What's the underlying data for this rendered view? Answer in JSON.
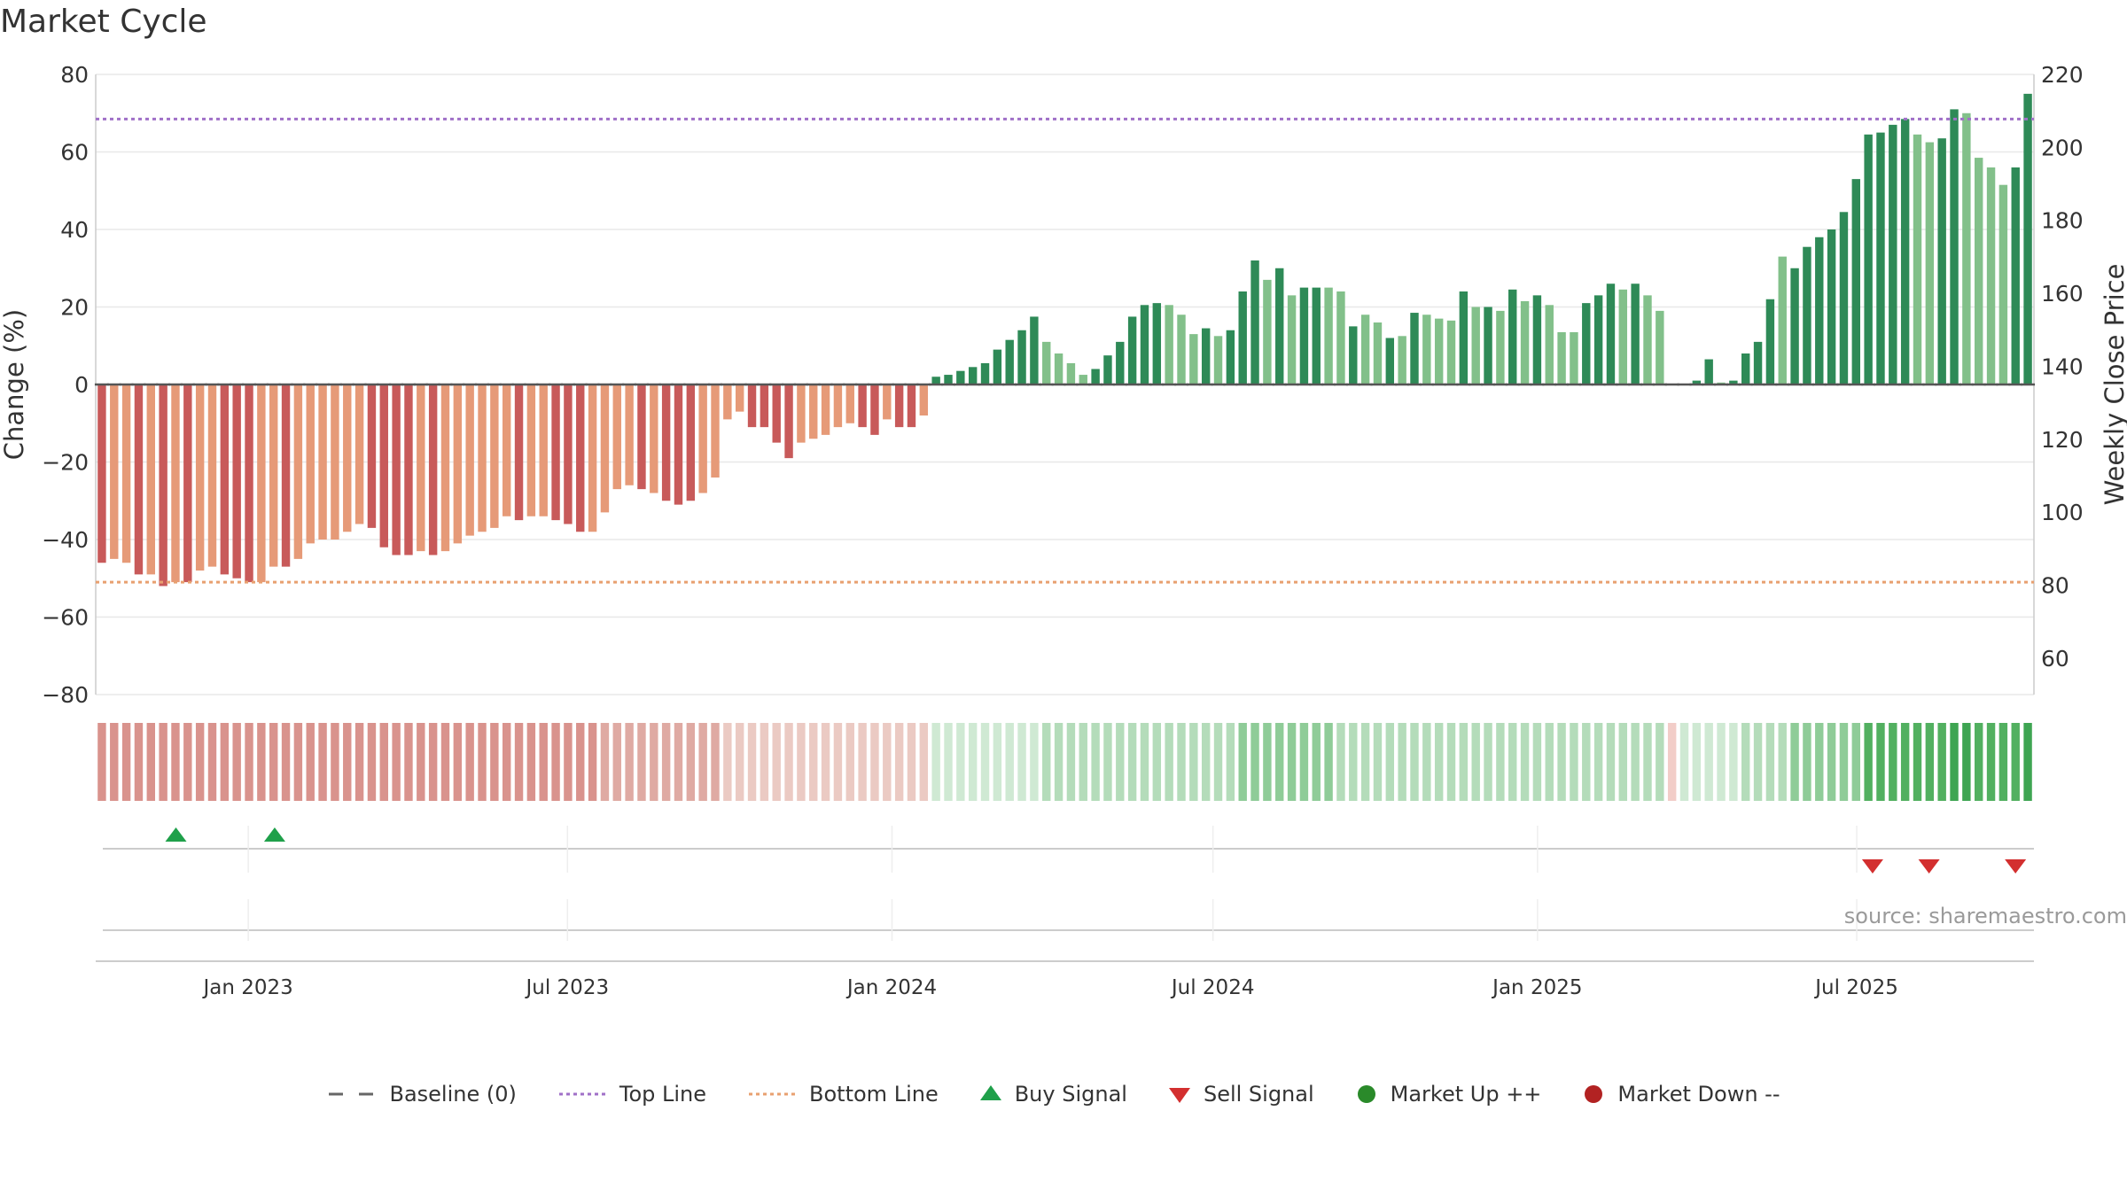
{
  "title": "Market Cycle",
  "source": "source: sharemaestro.com",
  "colors": {
    "down_strong": "#c85a5a",
    "down_light": "#e69a78",
    "up_strong": "#2e8a57",
    "up_light": "#82c08a",
    "top_line": "#a070c8",
    "bottom_line": "#e8a070",
    "baseline": "#555555",
    "buy": "#1fa04a",
    "sell": "#d32f2f",
    "market_up": "#2a8a2a",
    "market_down": "#b22222"
  },
  "legend": [
    {
      "key": "baseline",
      "label": "Baseline (0)",
      "marker": "dash"
    },
    {
      "key": "top",
      "label": "Top Line",
      "marker": "dot-line-purple"
    },
    {
      "key": "bottom",
      "label": "Bottom Line",
      "marker": "dot-line-orange"
    },
    {
      "key": "buy",
      "label": "Buy Signal",
      "marker": "triangle-up"
    },
    {
      "key": "sell",
      "label": "Sell Signal",
      "marker": "triangle-down"
    },
    {
      "key": "up",
      "label": "Market Up ++",
      "marker": "circle-green"
    },
    {
      "key": "down",
      "label": "Market Down --",
      "marker": "circle-red"
    }
  ],
  "chart_data": {
    "type": "bar",
    "ylabel": "Change (%)",
    "y2label": "Weekly Close Price",
    "ylim": [
      -80,
      80
    ],
    "y2lim": [
      50,
      220
    ],
    "yticks": [
      "80",
      "60",
      "40",
      "20",
      "0",
      "−20",
      "−40",
      "−60",
      "−80"
    ],
    "y2ticks": [
      "220",
      "200",
      "180",
      "160",
      "140",
      "120",
      "100",
      "80",
      "60"
    ],
    "top_line": 68.5,
    "bottom_line": -51,
    "x_start": "2022-10-10",
    "x_end": "2025-10-06",
    "xticks": [
      "Jan 2023",
      "Jul 2023",
      "Jan 2024",
      "Jul 2024",
      "Jan 2025",
      "Jul 2025"
    ],
    "xtick_dates": [
      "2023-01-01",
      "2023-07-01",
      "2024-01-01",
      "2024-07-01",
      "2025-01-01",
      "2025-07-01"
    ],
    "values": [
      -46,
      -45,
      -46,
      -49,
      -49,
      -52,
      -51,
      -51,
      -48,
      -47,
      -49,
      -50,
      -51,
      -51,
      -47,
      -47,
      -45,
      -41,
      -40,
      -40,
      -38,
      -36,
      -37,
      -42,
      -44,
      -44,
      -43,
      -44,
      -43,
      -41,
      -39,
      -38,
      -37,
      -34,
      -35,
      -34,
      -34,
      -35,
      -36,
      -38,
      -38,
      -33,
      -27,
      -26,
      -27,
      -28,
      -30,
      -31,
      -30,
      -28,
      -24,
      -9,
      -7,
      -11,
      -11,
      -15,
      -19,
      -15,
      -14,
      -13,
      -11,
      -10,
      -11,
      -13,
      -9,
      -11,
      -11,
      -8,
      2,
      2.5,
      3.5,
      4.5,
      5.5,
      9,
      11.5,
      14,
      17.5,
      11,
      8,
      5.5,
      2.5,
      4,
      7.5,
      11,
      17.5,
      20.5,
      21,
      20.5,
      18,
      13,
      14.5,
      12.5,
      14,
      24,
      32,
      27,
      30,
      23,
      25,
      25,
      25,
      24,
      15,
      18,
      16,
      12,
      12.5,
      18.5,
      18,
      17,
      16.5,
      24,
      20,
      20,
      19,
      24.5,
      21.5,
      23,
      20.5,
      13.5,
      13.5,
      21,
      23,
      26,
      24.5,
      26,
      23,
      19,
      null,
      null,
      1,
      6.5,
      0.5,
      1,
      8,
      11,
      22,
      33,
      30,
      35.5,
      38,
      40,
      44.5,
      53,
      64.5,
      65,
      67,
      68.5,
      64.5,
      62.5,
      63.5,
      71,
      70,
      58.5,
      56,
      51.5,
      56,
      75
    ],
    "strong": [
      1,
      0,
      0,
      1,
      0,
      1,
      0,
      1,
      0,
      0,
      1,
      1,
      1,
      0,
      0,
      1,
      0,
      0,
      0,
      0,
      0,
      0,
      1,
      1,
      1,
      1,
      0,
      1,
      0,
      0,
      0,
      0,
      0,
      0,
      1,
      0,
      0,
      1,
      1,
      1,
      0,
      0,
      0,
      0,
      1,
      0,
      1,
      1,
      1,
      0,
      0,
      0,
      0,
      1,
      1,
      1,
      1,
      0,
      0,
      0,
      0,
      0,
      1,
      1,
      0,
      1,
      1,
      0,
      1,
      1,
      1,
      1,
      1,
      1,
      1,
      1,
      1,
      0,
      0,
      0,
      0,
      1,
      1,
      1,
      1,
      1,
      1,
      0,
      0,
      0,
      1,
      0,
      1,
      1,
      1,
      0,
      1,
      0,
      1,
      1,
      0,
      0,
      1,
      0,
      0,
      1,
      0,
      1,
      0,
      0,
      0,
      1,
      0,
      1,
      0,
      1,
      0,
      1,
      0,
      0,
      0,
      1,
      1,
      1,
      0,
      1,
      0,
      0,
      0,
      0,
      1,
      1,
      0,
      1,
      1,
      1,
      1,
      0,
      1,
      1,
      1,
      1,
      1,
      1,
      1,
      1,
      1,
      1,
      0,
      0,
      1,
      1,
      0,
      0,
      0,
      0,
      1,
      1
    ],
    "regime": [
      3,
      3,
      3,
      3,
      3,
      3,
      3,
      3,
      3,
      3,
      3,
      3,
      3,
      3,
      3,
      3,
      3,
      3,
      3,
      3,
      3,
      3,
      3,
      3,
      3,
      3,
      3,
      3,
      3,
      3,
      3,
      3,
      3,
      3,
      3,
      3,
      3,
      3,
      3,
      3,
      3,
      2,
      2,
      2,
      2,
      2,
      2,
      2,
      2,
      2,
      2,
      1,
      1,
      1,
      1,
      1,
      1,
      1,
      1,
      1,
      1,
      1,
      1,
      1,
      1,
      1,
      1,
      1,
      4,
      4,
      4,
      4,
      4,
      4,
      4,
      4,
      4,
      5,
      5,
      5,
      5,
      5,
      5,
      5,
      5,
      5,
      5,
      5,
      5,
      5,
      5,
      5,
      5,
      6,
      6,
      6,
      6,
      6,
      6,
      6,
      6,
      5,
      5,
      5,
      5,
      5,
      5,
      5,
      5,
      5,
      5,
      5,
      5,
      5,
      5,
      5,
      5,
      5,
      5,
      5,
      5,
      5,
      5,
      5,
      5,
      5,
      5,
      5,
      0,
      4,
      4,
      4,
      4,
      4,
      5,
      5,
      5,
      5,
      6,
      6,
      6,
      6,
      6,
      6,
      7,
      7,
      7,
      7,
      7,
      7,
      7,
      8,
      8,
      7,
      7,
      7,
      7,
      8
    ],
    "regime_colors": [
      "#f2cdc8",
      "#ebcac3",
      "#dfaaa3",
      "#d9938d",
      "#cfe9d3",
      "#b4dcba",
      "#8fcc98",
      "#52b060",
      "#3ea552"
    ],
    "buy_signals": [
      "2022-11-21",
      "2023-01-16"
    ],
    "sell_signals": [
      "2025-07-10",
      "2025-08-11",
      "2025-09-29"
    ],
    "market_up_signals": [],
    "market_down_signals": []
  }
}
